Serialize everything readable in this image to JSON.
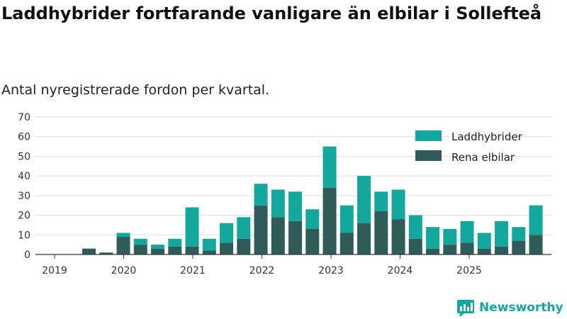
{
  "chart_data": {
    "type": "bar",
    "stacked": true,
    "title": "Laddhybrider fortfarande vanligare än elbilar i Sollefteå",
    "subtitle": "Antal nyregistrerade fordon per kvartal.",
    "xlabel": "",
    "ylabel": "",
    "ylim": [
      0,
      70
    ],
    "yticks": [
      0,
      10,
      20,
      30,
      40,
      50,
      60,
      70
    ],
    "year_ticks": [
      "2019",
      "2020",
      "2021",
      "2022",
      "2023",
      "2024",
      "2025"
    ],
    "grid": true,
    "legend_position": "top-right",
    "categories": [
      "2019 Q1",
      "2019 Q2",
      "2019 Q3",
      "2019 Q4",
      "2020 Q1",
      "2020 Q2",
      "2020 Q3",
      "2020 Q4",
      "2021 Q1",
      "2021 Q2",
      "2021 Q3",
      "2021 Q4",
      "2022 Q1",
      "2022 Q2",
      "2022 Q3",
      "2022 Q4",
      "2023 Q1",
      "2023 Q2",
      "2023 Q3",
      "2023 Q4",
      "2024 Q1",
      "2024 Q2",
      "2024 Q3",
      "2024 Q4",
      "2025 Q1",
      "2025 Q2",
      "2025 Q3",
      "2025 Q4"
    ],
    "series": [
      {
        "name": "Rena elbilar",
        "color": "#2f5b58",
        "values": [
          0,
          3,
          1,
          9,
          5,
          3,
          4,
          4,
          2,
          6,
          8,
          25,
          19,
          17,
          13,
          34,
          11,
          16,
          22,
          18,
          8,
          3,
          5,
          6,
          3,
          4,
          7,
          10
        ]
      },
      {
        "name": "Laddhybrider",
        "color": "#13a89e",
        "values": [
          0,
          0,
          0,
          2,
          3,
          2,
          4,
          20,
          6,
          10,
          11,
          11,
          14,
          15,
          10,
          21,
          14,
          24,
          10,
          15,
          12,
          11,
          8,
          11,
          8,
          13,
          7,
          15
        ]
      }
    ]
  },
  "legend": {
    "items": [
      {
        "label": "Laddhybrider",
        "color": "#13a89e"
      },
      {
        "label": "Rena elbilar",
        "color": "#2f5b58"
      }
    ]
  },
  "brand": {
    "name": "Newsworthy",
    "color": "#13a89e",
    "icon": "newsworthy-logo-icon"
  }
}
